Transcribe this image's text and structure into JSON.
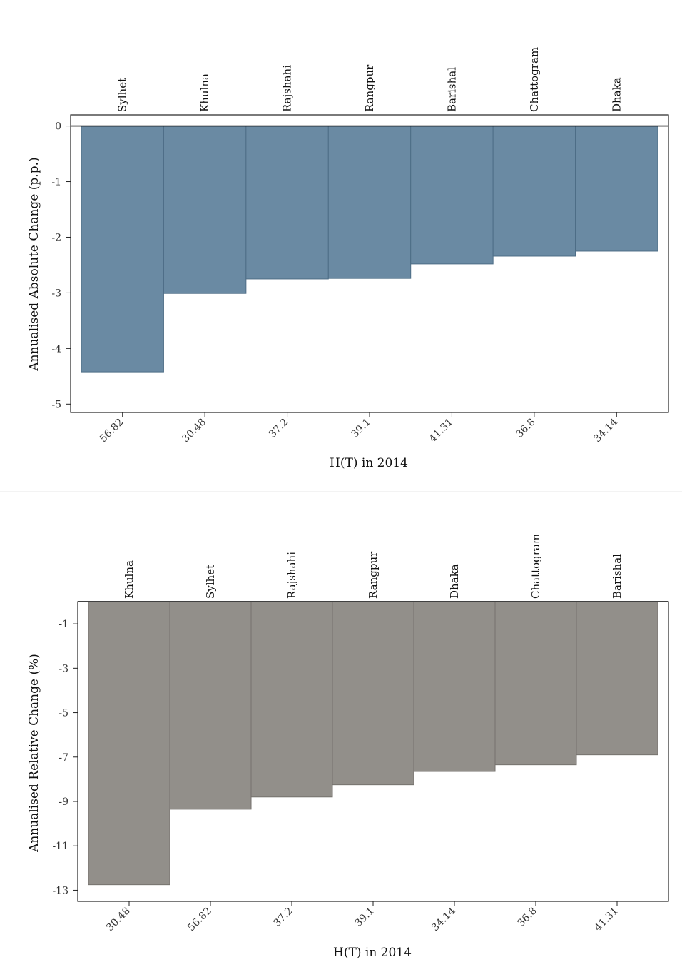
{
  "chart_data": [
    {
      "type": "bar",
      "categories": [
        "Sylhet",
        "Khulna",
        "Rajshahi",
        "Rangpur",
        "Barishal",
        "Chattogram",
        "Dhaka"
      ],
      "x_tick_labels": [
        "56.82",
        "30.48",
        "37.2",
        "39.1",
        "41.31",
        "36.8",
        "34.14"
      ],
      "values": [
        -4.42,
        -3.01,
        -2.75,
        -2.74,
        -2.48,
        -2.34,
        -2.25
      ],
      "xlabel": "H(T) in 2014",
      "ylabel": "Annualised Absolute Change (p.p.)",
      "ylim": [
        -5.15,
        0.2
      ],
      "yticks": [
        0,
        -1,
        -2,
        -3,
        -4,
        -5
      ],
      "bar_color": "#6a8aa3",
      "bar_edge_color": "#4d6d86",
      "grid": false
    },
    {
      "type": "bar",
      "categories": [
        "Khulna",
        "Sylhet",
        "Rajshahi",
        "Rangpur",
        "Dhaka",
        "Chattogram",
        "Barishal"
      ],
      "x_tick_labels": [
        "30.48",
        "56.82",
        "37.2",
        "39.1",
        "34.14",
        "36.8",
        "41.31"
      ],
      "values": [
        -12.75,
        -9.35,
        -8.8,
        -8.25,
        -7.65,
        -7.35,
        -6.9
      ],
      "xlabel": "H(T) in 2014",
      "ylabel": "Annualised Relative Change (%)",
      "ylim": [
        -13.5,
        0
      ],
      "yticks": [
        -1,
        -3,
        -5,
        -7,
        -9,
        -11,
        -13
      ],
      "bar_color": "#928f8a",
      "bar_edge_color": "#75726d",
      "grid": false
    }
  ]
}
